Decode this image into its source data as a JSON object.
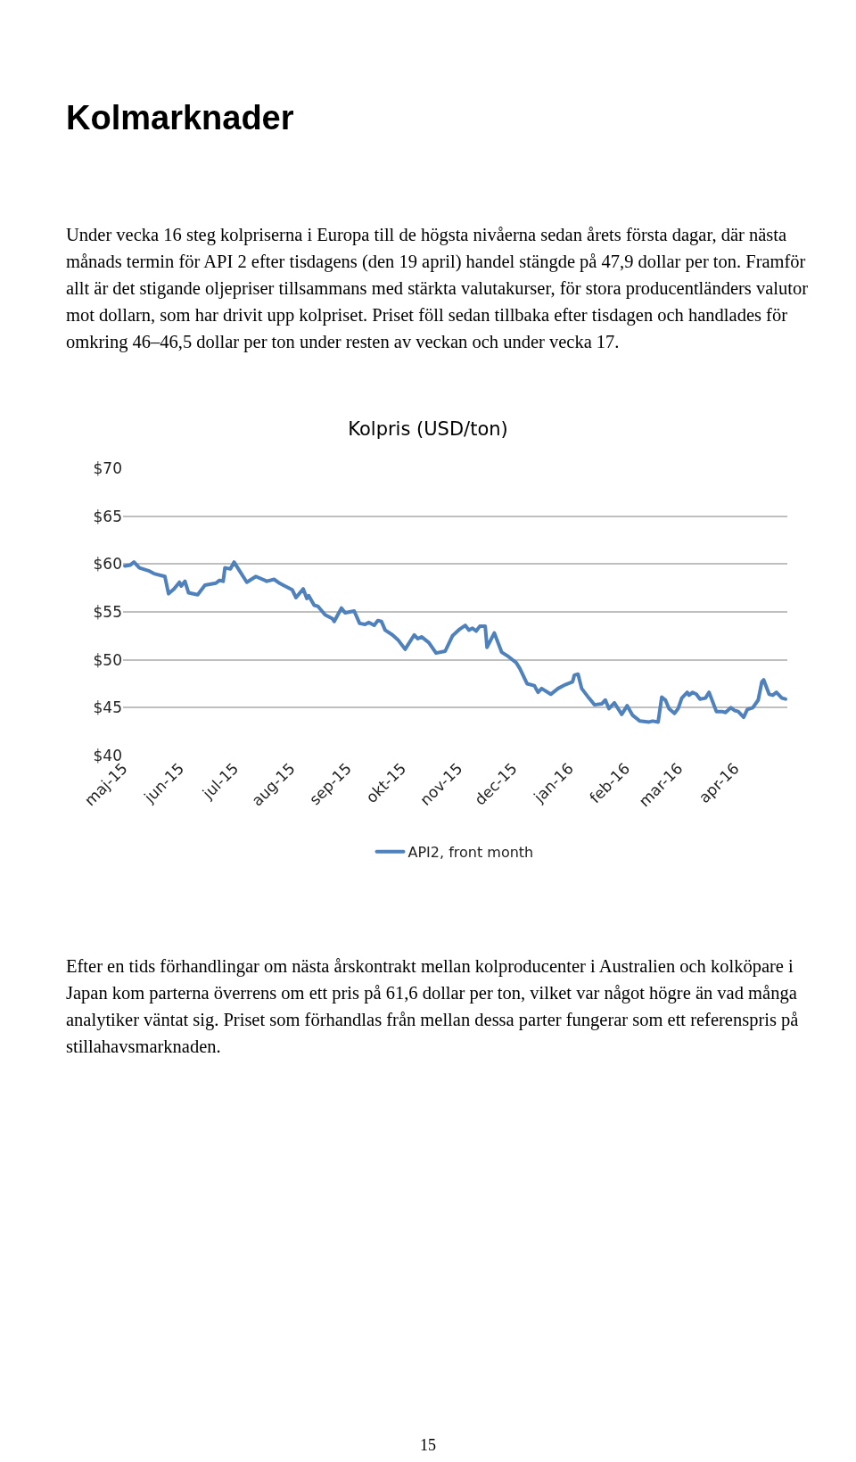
{
  "chart_data": {
    "type": "line",
    "title": "Kolpris (USD/ton)",
    "annotations": [
      "Kolmarknader",
      "Under vecka 16 steg kolpriserna i Europa till de högsta nivåerna sedan årets första dagar, där nästa månads termin för API 2 efter tisdagens (den 19 april) handel stängde på 47,9 dollar per ton. Framför allt är det stigande oljepriser tillsammans med stärkta valutakurser, för stora producentländers valutor mot dollarn, som har drivit upp kolpriset. Priset föll sedan tillbaka efter tisdagen och handlades för omkring 46–46,5 dollar per ton under resten av veckan och under vecka 17.",
      "Efter en tids förhandlingar om nästa årskontrakt mellan kolproducenter i Australien och kolköpare i Japan kom parterna överrens om ett pris på 61,6 dollar per ton, vilket var något högre än vad många analytiker väntat sig. Priset som förhandlas från mellan dessa parter fungerar som ett referenspris på stillahavsmarknaden.",
      "15"
    ],
    "x": [
      "2015-05-02",
      "2015-05-05",
      "2015-05-07",
      "2015-05-10",
      "2015-05-15",
      "2015-05-18",
      "2015-05-24",
      "2015-05-26",
      "2015-05-29",
      "2015-06-01",
      "2015-06-02",
      "2015-06-04",
      "2015-06-06",
      "2015-06-11",
      "2015-06-15",
      "2015-06-21",
      "2015-06-23",
      "2015-06-25",
      "2015-06-26",
      "2015-06-29",
      "2015-07-01",
      "2015-07-04",
      "2015-07-08",
      "2015-07-13",
      "2015-07-19",
      "2015-07-23",
      "2015-07-26",
      "2015-07-28",
      "2015-08-02",
      "2015-08-04",
      "2015-08-08",
      "2015-08-10",
      "2015-08-11",
      "2015-08-14",
      "2015-08-16",
      "2015-08-20",
      "2015-08-24",
      "2015-08-25",
      "2015-08-29",
      "2015-08-31",
      "2015-09-05",
      "2015-09-08",
      "2015-09-11",
      "2015-09-13",
      "2015-09-16",
      "2015-09-18",
      "2015-09-20",
      "2015-09-22",
      "2015-09-26",
      "2015-09-29",
      "2015-10-03",
      "2015-10-08",
      "2015-10-10",
      "2015-10-12",
      "2015-10-16",
      "2015-10-20",
      "2015-10-25",
      "2015-10-29",
      "2015-11-02",
      "2015-11-05",
      "2015-11-07",
      "2015-11-09",
      "2015-11-11",
      "2015-11-13",
      "2015-11-16",
      "2015-11-17",
      "2015-11-21",
      "2015-11-25",
      "2015-11-29",
      "2015-12-03",
      "2015-12-05",
      "2015-12-06",
      "2015-12-09",
      "2015-12-13",
      "2015-12-15",
      "2015-12-17",
      "2015-12-22",
      "2015-12-26",
      "2015-12-30",
      "2016-01-03",
      "2016-01-04",
      "2016-01-06",
      "2016-01-08",
      "2016-01-12",
      "2016-01-15",
      "2016-01-19",
      "2016-01-21",
      "2016-01-23",
      "2016-01-26",
      "2016-01-30",
      "2016-02-02",
      "2016-02-05",
      "2016-02-07",
      "2016-02-09",
      "2016-02-14",
      "2016-02-16",
      "2016-02-19",
      "2016-02-21",
      "2016-02-23",
      "2016-02-25",
      "2016-02-28",
      "2016-03-01",
      "2016-03-03",
      "2016-03-06",
      "2016-03-07",
      "2016-03-09",
      "2016-03-11",
      "2016-03-13",
      "2016-03-16",
      "2016-03-18",
      "2016-03-22",
      "2016-03-25",
      "2016-03-27",
      "2016-03-30",
      "2016-04-01",
      "2016-04-03",
      "2016-04-06",
      "2016-04-08",
      "2016-04-11",
      "2016-04-14",
      "2016-04-16",
      "2016-04-17",
      "2016-04-20",
      "2016-04-22",
      "2016-04-24",
      "2016-04-27",
      "2016-04-29"
    ],
    "series": [
      {
        "name": "API2, front month",
        "color": "#4f81bd",
        "values": [
          59.8,
          59.9,
          60.2,
          59.6,
          59.3,
          59.0,
          58.7,
          56.9,
          57.4,
          58.1,
          57.7,
          58.2,
          57.0,
          56.8,
          57.8,
          58.0,
          58.3,
          58.2,
          59.6,
          59.5,
          60.2,
          59.3,
          58.1,
          58.7,
          58.2,
          58.4,
          58.0,
          57.8,
          57.3,
          56.5,
          57.4,
          56.4,
          56.7,
          55.7,
          55.6,
          54.7,
          54.3,
          54.0,
          55.4,
          54.9,
          55.1,
          53.8,
          53.7,
          53.9,
          53.6,
          54.1,
          54.0,
          53.1,
          52.6,
          52.1,
          51.1,
          52.6,
          52.2,
          52.4,
          51.8,
          50.7,
          50.9,
          52.5,
          53.2,
          53.6,
          53.1,
          53.3,
          53.0,
          53.5,
          53.5,
          51.3,
          52.8,
          50.8,
          50.3,
          49.7,
          49.1,
          48.7,
          47.5,
          47.3,
          46.6,
          47.0,
          46.4,
          47.0,
          47.4,
          47.7,
          48.4,
          48.5,
          47.0,
          46.0,
          45.3,
          45.4,
          45.8,
          44.9,
          45.5,
          44.3,
          45.2,
          44.2,
          43.9,
          43.6,
          43.5,
          43.6,
          43.5,
          46.1,
          45.8,
          44.9,
          44.4,
          44.9,
          46.0,
          46.6,
          46.3,
          46.6,
          46.4,
          45.9,
          46.0,
          46.6,
          44.6,
          44.6,
          44.5,
          45.0,
          44.7,
          44.6,
          44.0,
          44.8,
          45.0,
          45.8,
          47.7,
          47.9,
          46.4,
          46.3,
          46.6,
          46.0,
          45.9
        ]
      }
    ],
    "xlim": [
      "2015-05-01",
      "2016-04-30"
    ],
    "xticks": [
      {
        "value": "2015-05-01",
        "label": "maj-15"
      },
      {
        "value": "2015-06-01",
        "label": "jun-15"
      },
      {
        "value": "2015-07-01",
        "label": "jul-15"
      },
      {
        "value": "2015-08-01",
        "label": "aug-15"
      },
      {
        "value": "2015-09-01",
        "label": "sep-15"
      },
      {
        "value": "2015-10-01",
        "label": "okt-15"
      },
      {
        "value": "2015-11-01",
        "label": "nov-15"
      },
      {
        "value": "2015-12-01",
        "label": "dec-15"
      },
      {
        "value": "2016-01-01",
        "label": "jan-16"
      },
      {
        "value": "2016-02-01",
        "label": "feb-16"
      },
      {
        "value": "2016-03-01",
        "label": "mar-16"
      },
      {
        "value": "2016-04-01",
        "label": "apr-16"
      }
    ],
    "ylim": [
      40,
      70
    ],
    "yticks": [
      {
        "value": 40,
        "label": "$40"
      },
      {
        "value": 45,
        "label": "$45"
      },
      {
        "value": 50,
        "label": "$50"
      },
      {
        "value": 55,
        "label": "$55"
      },
      {
        "value": 60,
        "label": "$60"
      },
      {
        "value": 65,
        "label": "$65"
      },
      {
        "value": 70,
        "label": "$70"
      }
    ],
    "grid": "y",
    "legend": "bottom",
    "marker": "none",
    "line_style": "solid"
  }
}
